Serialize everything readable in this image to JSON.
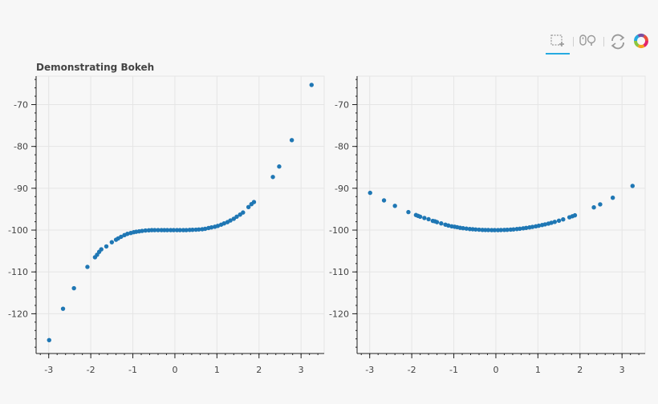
{
  "toolbar": {
    "tools": [
      {
        "name": "box-zoom-tool",
        "icon": "box-zoom-icon",
        "active": true
      },
      {
        "name": "wheel-zoom-tool",
        "icon": "wheel-zoom-icon",
        "active": false
      },
      {
        "name": "reset-tool",
        "icon": "reset-icon",
        "active": false
      },
      {
        "name": "bokeh-logo",
        "icon": "bokeh-logo-icon",
        "active": false
      }
    ],
    "accent_color": "#26aae1"
  },
  "chart_data": [
    {
      "type": "scatter",
      "title": "Demonstrating Bokeh",
      "xlabel": "",
      "ylabel": "",
      "xlim": [
        -3.3,
        3.55
      ],
      "ylim": [
        -129.5,
        -63.2
      ],
      "xticks": [
        -3,
        -2,
        -1,
        0,
        1,
        2,
        3
      ],
      "yticks": [
        -120,
        -110,
        -100,
        -90,
        -80,
        -70
      ],
      "grid": true,
      "color": "#1f77b4",
      "x": [
        -2.99,
        -2.66,
        -2.4,
        -2.08,
        -1.9,
        -1.85,
        -1.8,
        -1.75,
        -1.63,
        -1.5,
        -1.4,
        -1.35,
        -1.28,
        -1.2,
        -1.13,
        -1.05,
        -0.98,
        -0.92,
        -0.85,
        -0.78,
        -0.7,
        -0.62,
        -0.55,
        -0.48,
        -0.4,
        -0.32,
        -0.25,
        -0.18,
        -0.1,
        -0.03,
        0.05,
        0.12,
        0.2,
        0.27,
        0.35,
        0.42,
        0.5,
        0.57,
        0.65,
        0.72,
        0.8,
        0.87,
        0.95,
        1.02,
        1.1,
        1.17,
        1.25,
        1.32,
        1.4,
        1.47,
        1.55,
        1.62,
        1.75,
        1.82,
        1.88,
        2.33,
        2.48,
        2.78,
        3.25
      ],
      "y": [
        -126.3,
        -118.8,
        -113.9,
        -108.8,
        -106.5,
        -105.9,
        -105.2,
        -104.6,
        -103.9,
        -102.9,
        -102.3,
        -102.0,
        -101.6,
        -101.2,
        -100.9,
        -100.7,
        -100.5,
        -100.4,
        -100.3,
        -100.2,
        -100.1,
        -100.05,
        -100.0,
        -100.0,
        -100.0,
        -100.0,
        -100.0,
        -100.0,
        -100.0,
        -100.0,
        -100.0,
        -100.0,
        -100.0,
        -100.0,
        -99.95,
        -99.93,
        -99.9,
        -99.85,
        -99.8,
        -99.7,
        -99.5,
        -99.35,
        -99.2,
        -99.0,
        -98.7,
        -98.4,
        -98.1,
        -97.7,
        -97.3,
        -96.8,
        -96.3,
        -95.8,
        -94.5,
        -93.8,
        -93.3,
        -87.3,
        -84.8,
        -78.5,
        -65.3
      ]
    },
    {
      "type": "scatter",
      "title": "",
      "xlabel": "",
      "ylabel": "",
      "xlim": [
        -3.3,
        3.55
      ],
      "ylim": [
        -129.5,
        -63.2
      ],
      "xticks": [
        -3,
        -2,
        -1,
        0,
        1,
        2,
        3
      ],
      "yticks": [
        -120,
        -110,
        -100,
        -90,
        -80,
        -70
      ],
      "grid": true,
      "color": "#1f77b4",
      "x": [
        -2.99,
        -2.66,
        -2.4,
        -2.08,
        -1.9,
        -1.85,
        -1.8,
        -1.7,
        -1.6,
        -1.5,
        -1.45,
        -1.4,
        -1.3,
        -1.2,
        -1.13,
        -1.05,
        -0.98,
        -0.92,
        -0.85,
        -0.78,
        -0.7,
        -0.62,
        -0.55,
        -0.48,
        -0.4,
        -0.32,
        -0.25,
        -0.18,
        -0.1,
        -0.03,
        0.05,
        0.12,
        0.2,
        0.27,
        0.35,
        0.42,
        0.5,
        0.57,
        0.65,
        0.72,
        0.8,
        0.87,
        0.95,
        1.02,
        1.1,
        1.17,
        1.25,
        1.32,
        1.4,
        1.5,
        1.6,
        1.75,
        1.82,
        1.88,
        2.33,
        2.48,
        2.78,
        3.25
      ],
      "y": [
        -91.1,
        -92.9,
        -94.2,
        -95.7,
        -96.4,
        -96.6,
        -96.8,
        -97.1,
        -97.4,
        -97.8,
        -97.9,
        -98.1,
        -98.4,
        -98.7,
        -98.9,
        -99.1,
        -99.2,
        -99.3,
        -99.45,
        -99.55,
        -99.65,
        -99.75,
        -99.8,
        -99.85,
        -99.9,
        -99.95,
        -99.97,
        -99.98,
        -100.0,
        -100.0,
        -100.0,
        -99.98,
        -99.96,
        -99.93,
        -99.88,
        -99.83,
        -99.75,
        -99.68,
        -99.58,
        -99.48,
        -99.36,
        -99.24,
        -99.1,
        -98.96,
        -98.79,
        -98.63,
        -98.44,
        -98.26,
        -98.04,
        -97.75,
        -97.44,
        -96.94,
        -96.69,
        -96.47,
        -94.57,
        -93.85,
        -92.27,
        -89.44
      ]
    }
  ]
}
